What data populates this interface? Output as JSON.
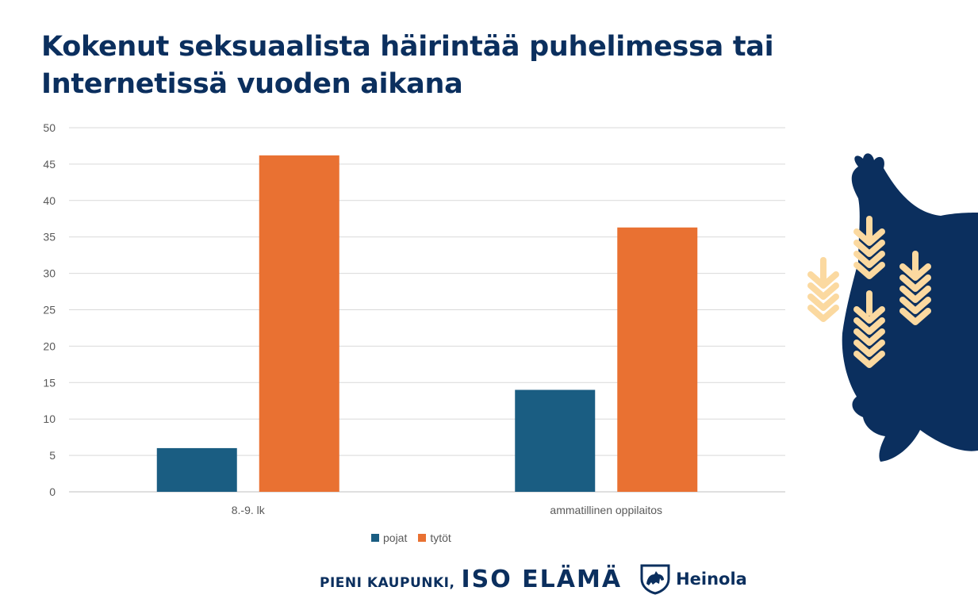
{
  "chart_data": {
    "type": "bar",
    "title": [
      "Kokenut seksuaalista häirintää puhelimessa tai",
      "Internetissä vuoden aikana"
    ],
    "categories": [
      "8.-9. lk",
      "ammatillinen oppilaitos"
    ],
    "series": [
      {
        "name": "pojat",
        "color": "#1a5d82",
        "values": [
          6,
          14
        ]
      },
      {
        "name": "tytöt",
        "color": "#e97132",
        "values": [
          46.2,
          36.3
        ]
      }
    ],
    "ylim": [
      0,
      50
    ],
    "yticks": [
      0,
      5,
      10,
      15,
      20,
      25,
      30,
      35,
      40,
      45,
      50
    ],
    "grid": true,
    "legend_position": "bottom"
  },
  "footer": {
    "slogan_small": "PIENI KAUPUNKI,",
    "slogan_big": "ISO ELÄMÄ",
    "brand_name": "Heinola",
    "brand_icon": "lion-crest-icon"
  },
  "decoration": {
    "icon": "wheat-ears-icon",
    "colors": {
      "dark": "#0b2f5e",
      "light": "#fbd9a0"
    }
  }
}
